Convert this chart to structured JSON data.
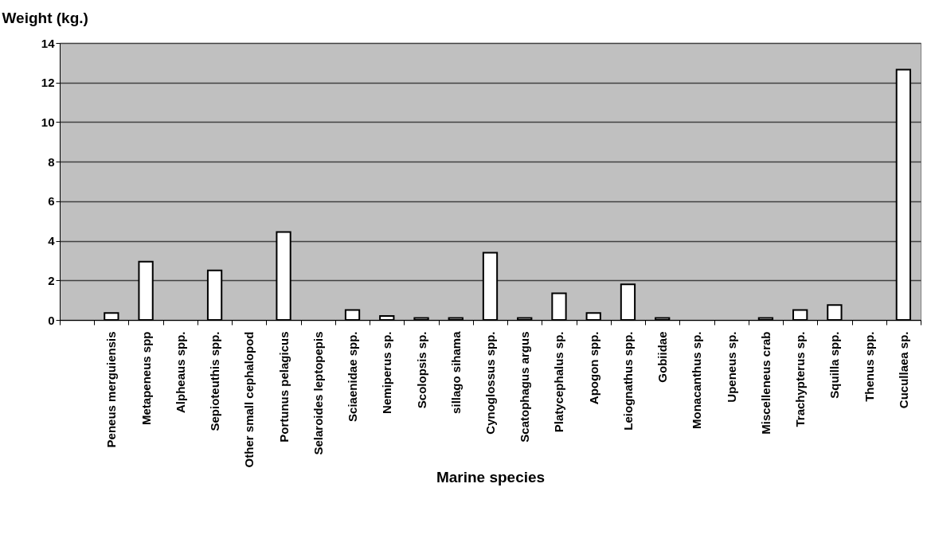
{
  "chart_data": {
    "type": "bar",
    "xlabel": "Marine species",
    "ylabel": "Weight (kg.)",
    "categories": [
      null,
      "Peneus merguiensis",
      "Metapeneus spp",
      "Alpheaus spp.",
      "Sepioteuthis spp.",
      "Other small cephalopod",
      "Portunus pelagicus",
      "Selaroides leptopepis",
      "Sciaenidae spp.",
      "Nemiperus sp.",
      "Scolopsis sp.",
      "sillago sihama",
      "Cynoglossus spp.",
      "Scatophagus argus",
      "Platycephalus sp.",
      "Apogon spp.",
      "Leiognathus spp.",
      "Gobiidae",
      "Monacanthus sp.",
      "Upeneus sp.",
      "Miscelleneus crab",
      "Trachypterus sp.",
      "Squilla spp.",
      "Thenus spp.",
      "Cucullaea sp."
    ],
    "values": [
      null,
      0.35,
      2.95,
      0,
      2.5,
      0,
      4.45,
      0,
      0.5,
      0.2,
      0.1,
      0.1,
      3.4,
      0.1,
      1.35,
      0.35,
      1.8,
      0.1,
      0,
      0,
      0.1,
      0.5,
      0.75,
      0,
      12.65
    ],
    "color": "#ffffff",
    "ylim": [
      0,
      14
    ],
    "yticks": [
      0,
      2,
      4,
      6,
      8,
      10,
      12,
      14
    ],
    "grid": "y"
  }
}
